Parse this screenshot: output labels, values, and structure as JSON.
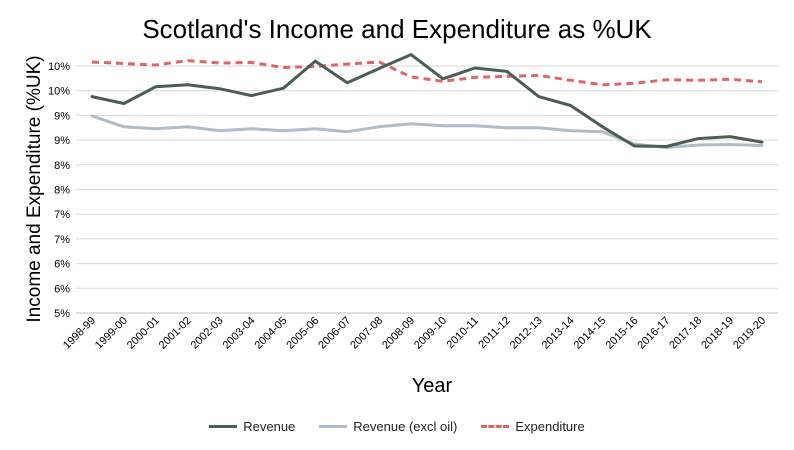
{
  "chart_data": {
    "type": "line",
    "title": "Scotland's Income and Expenditure as %UK",
    "xlabel": "Year",
    "ylabel": "Income and Expenditure (%UK)",
    "ytick_labels": [
      "5%",
      "6%",
      "6%",
      "7%",
      "7%",
      "8%",
      "8%",
      "9%",
      "9%",
      "10%",
      "10%"
    ],
    "ylim": [
      5.0,
      10.0
    ],
    "categories": [
      "1998-99",
      "1999-00",
      "2000-01",
      "2001-02",
      "2002-03",
      "2003-04",
      "2004-05",
      "2005-06",
      "2006-07",
      "2007-08",
      "2008-09",
      "2009-10",
      "2010-11",
      "2011-12",
      "2012-13",
      "2013-14",
      "2014-15",
      "2015-16",
      "2016-17",
      "2017-18",
      "2018-19",
      "2019-20"
    ],
    "series": [
      {
        "name": "Revenue",
        "color": "#4a5e53",
        "style": "solid",
        "values": [
          9.38,
          9.24,
          9.58,
          9.62,
          9.54,
          9.4,
          9.55,
          10.1,
          9.66,
          9.95,
          10.23,
          9.74,
          9.96,
          9.89,
          9.38,
          9.2,
          8.77,
          8.38,
          8.37,
          8.53,
          8.57,
          8.46
        ]
      },
      {
        "name": "Revenue (excl oil)",
        "color": "#aebccc",
        "style": "solid",
        "values": [
          8.99,
          8.77,
          8.73,
          8.77,
          8.69,
          8.73,
          8.69,
          8.73,
          8.67,
          8.77,
          8.83,
          8.79,
          8.79,
          8.75,
          8.75,
          8.69,
          8.67,
          8.42,
          8.35,
          8.4,
          8.41,
          8.39
        ]
      },
      {
        "name": "Expenditure",
        "color": "#e06666",
        "style": "dashed",
        "values": [
          10.08,
          10.05,
          10.02,
          10.11,
          10.06,
          10.07,
          9.97,
          9.99,
          10.04,
          10.08,
          9.78,
          9.69,
          9.77,
          9.79,
          9.81,
          9.71,
          9.62,
          9.65,
          9.72,
          9.71,
          9.73,
          9.68
        ]
      }
    ]
  }
}
